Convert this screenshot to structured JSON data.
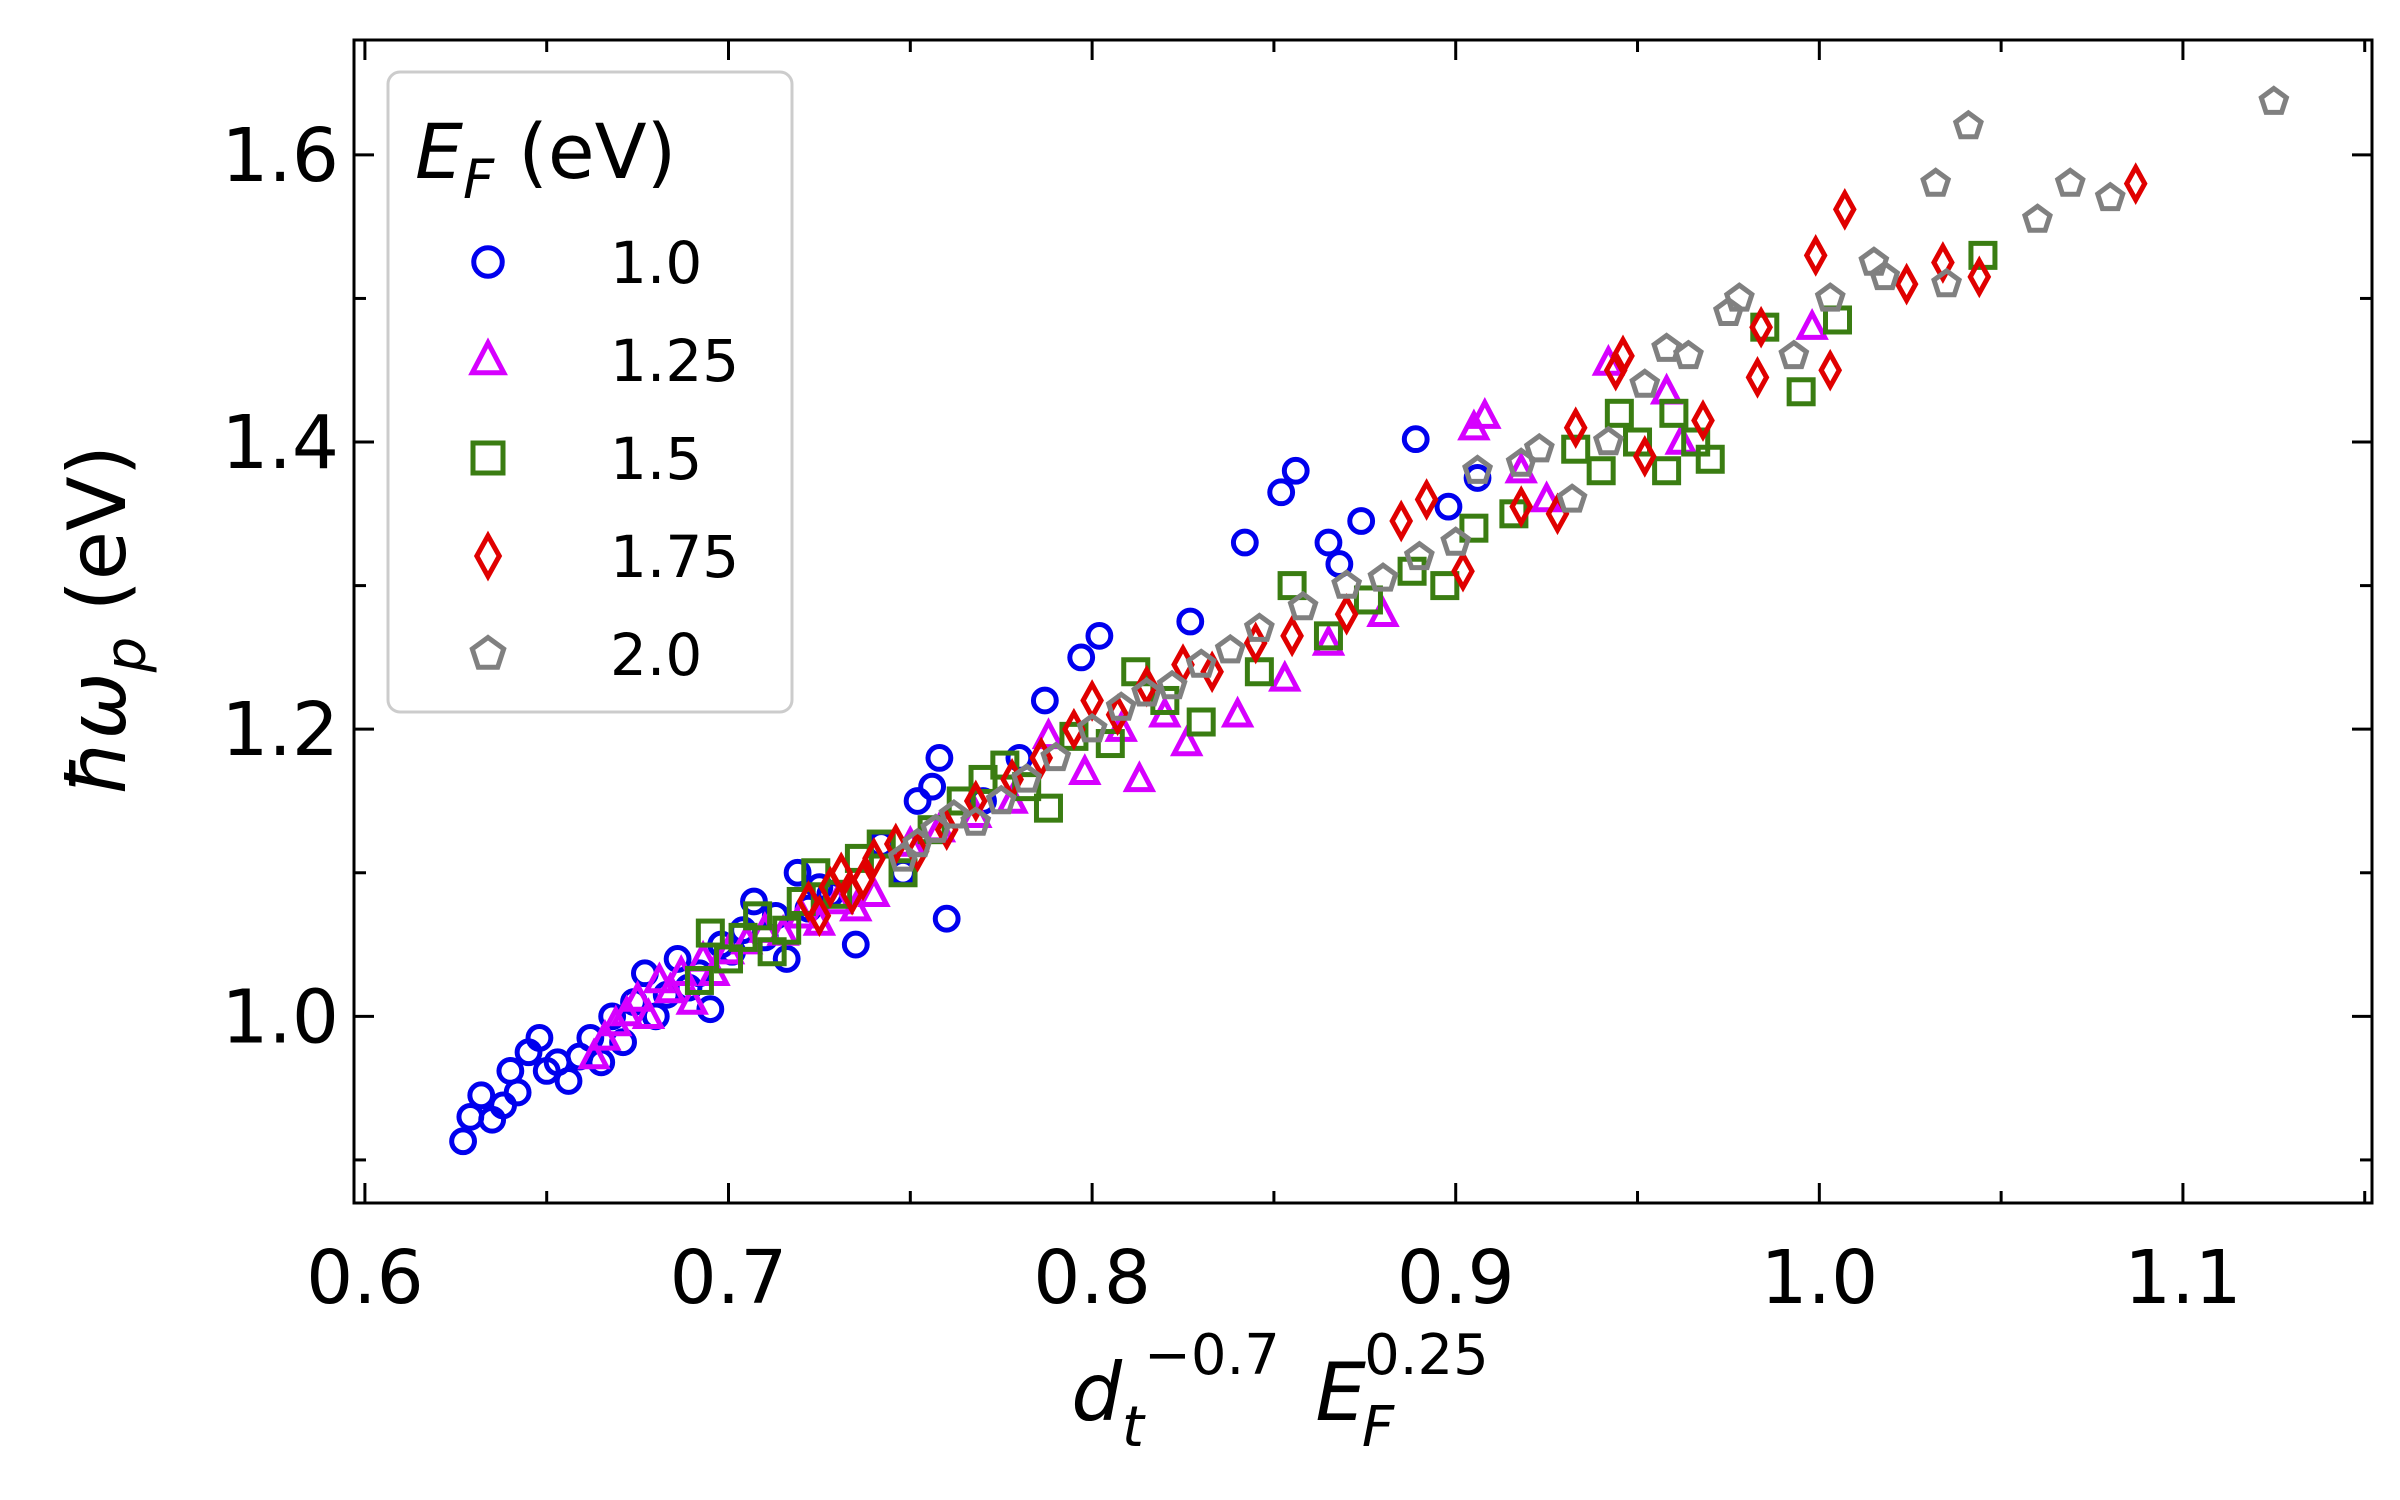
{
  "chart_data": {
    "type": "scatter",
    "xlabel": {
      "base": "d",
      "sub": "t",
      "sup": "−0.7",
      "base2": "E",
      "sub2": "F",
      "sup2": "0.25"
    },
    "ylabel": {
      "symbol": "ħω",
      "sub": "p",
      "unit": "(eV)"
    },
    "xlim": [
      0.597,
      1.152
    ],
    "ylim": [
      0.87,
      1.68
    ],
    "xticks": [
      0.6,
      0.7,
      0.8,
      0.9,
      1.0,
      1.1
    ],
    "xtick_labels": [
      "0.6",
      "0.7",
      "0.8",
      "0.9",
      "1.0",
      "1.1"
    ],
    "yticks": [
      1.0,
      1.2,
      1.4,
      1.6
    ],
    "ytick_labels": [
      "1.0",
      "1.2",
      "1.4",
      "1.6"
    ],
    "yminor": [
      0.9,
      1.1,
      1.3,
      1.5
    ],
    "grid": false,
    "legend": {
      "title": {
        "symbol": "E",
        "sub": "F",
        "unit": "(eV)"
      },
      "placement": "top-left"
    },
    "series": [
      {
        "name": "1.0",
        "marker": "circle",
        "color": "#0000ee",
        "points": [
          [
            0.627,
            0.913
          ],
          [
            0.629,
            0.93
          ],
          [
            0.632,
            0.945
          ],
          [
            0.635,
            0.928
          ],
          [
            0.638,
            0.938
          ],
          [
            0.64,
            0.962
          ],
          [
            0.642,
            0.947
          ],
          [
            0.645,
            0.975
          ],
          [
            0.648,
            0.985
          ],
          [
            0.65,
            0.962
          ],
          [
            0.653,
            0.968
          ],
          [
            0.656,
            0.955
          ],
          [
            0.659,
            0.972
          ],
          [
            0.662,
            0.985
          ],
          [
            0.665,
            0.968
          ],
          [
            0.668,
            1.0
          ],
          [
            0.671,
            0.982
          ],
          [
            0.674,
            1.01
          ],
          [
            0.677,
            1.03
          ],
          [
            0.68,
            1.0
          ],
          [
            0.683,
            1.015
          ],
          [
            0.686,
            1.04
          ],
          [
            0.689,
            1.02
          ],
          [
            0.692,
            1.03
          ],
          [
            0.695,
            1.005
          ],
          [
            0.698,
            1.05
          ],
          [
            0.701,
            1.045
          ],
          [
            0.704,
            1.06
          ],
          [
            0.707,
            1.08
          ],
          [
            0.71,
            1.055
          ],
          [
            0.713,
            1.07
          ],
          [
            0.716,
            1.04
          ],
          [
            0.719,
            1.1
          ],
          [
            0.722,
            1.075
          ],
          [
            0.725,
            1.09
          ],
          [
            0.728,
            1.085
          ],
          [
            0.735,
            1.05
          ],
          [
            0.742,
            1.12
          ],
          [
            0.748,
            1.1
          ],
          [
            0.752,
            1.15
          ],
          [
            0.756,
            1.16
          ],
          [
            0.758,
            1.18
          ],
          [
            0.76,
            1.068
          ],
          [
            0.77,
            1.15
          ],
          [
            0.78,
            1.18
          ],
          [
            0.787,
            1.22
          ],
          [
            0.797,
            1.25
          ],
          [
            0.802,
            1.265
          ],
          [
            0.827,
            1.275
          ],
          [
            0.842,
            1.33
          ],
          [
            0.852,
            1.365
          ],
          [
            0.856,
            1.38
          ],
          [
            0.865,
            1.33
          ],
          [
            0.868,
            1.315
          ],
          [
            0.874,
            1.345
          ],
          [
            0.889,
            1.402
          ],
          [
            0.898,
            1.355
          ],
          [
            0.906,
            1.375
          ]
        ]
      },
      {
        "name": "1.25",
        "marker": "triangle",
        "color": "#d600ff",
        "points": [
          [
            0.663,
            0.972
          ],
          [
            0.666,
            0.985
          ],
          [
            0.669,
            0.995
          ],
          [
            0.672,
            1.002
          ],
          [
            0.675,
            1.012
          ],
          [
            0.678,
            1.0
          ],
          [
            0.681,
            1.025
          ],
          [
            0.684,
            1.018
          ],
          [
            0.687,
            1.03
          ],
          [
            0.69,
            1.01
          ],
          [
            0.693,
            1.04
          ],
          [
            0.696,
            1.03
          ],
          [
            0.7,
            1.045
          ],
          [
            0.705,
            1.052
          ],
          [
            0.71,
            1.06
          ],
          [
            0.715,
            1.058
          ],
          [
            0.72,
            1.07
          ],
          [
            0.725,
            1.065
          ],
          [
            0.73,
            1.08
          ],
          [
            0.735,
            1.075
          ],
          [
            0.74,
            1.085
          ],
          [
            0.75,
            1.12
          ],
          [
            0.758,
            1.13
          ],
          [
            0.768,
            1.14
          ],
          [
            0.778,
            1.15
          ],
          [
            0.788,
            1.195
          ],
          [
            0.798,
            1.17
          ],
          [
            0.808,
            1.2
          ],
          [
            0.813,
            1.165
          ],
          [
            0.82,
            1.21
          ],
          [
            0.826,
            1.19
          ],
          [
            0.84,
            1.21
          ],
          [
            0.853,
            1.235
          ],
          [
            0.865,
            1.26
          ],
          [
            0.88,
            1.28
          ],
          [
            0.905,
            1.41
          ],
          [
            0.908,
            1.418
          ],
          [
            0.918,
            1.38
          ],
          [
            0.925,
            1.36
          ],
          [
            0.942,
            1.455
          ],
          [
            0.958,
            1.435
          ],
          [
            0.962,
            1.4
          ],
          [
            0.998,
            1.48
          ]
        ]
      },
      {
        "name": "1.5",
        "marker": "square",
        "color": "#3a7d12",
        "points": [
          [
            0.692,
            1.025
          ],
          [
            0.695,
            1.058
          ],
          [
            0.7,
            1.04
          ],
          [
            0.704,
            1.055
          ],
          [
            0.708,
            1.07
          ],
          [
            0.712,
            1.045
          ],
          [
            0.716,
            1.06
          ],
          [
            0.72,
            1.08
          ],
          [
            0.724,
            1.1
          ],
          [
            0.73,
            1.085
          ],
          [
            0.736,
            1.11
          ],
          [
            0.742,
            1.12
          ],
          [
            0.748,
            1.1
          ],
          [
            0.756,
            1.13
          ],
          [
            0.764,
            1.15
          ],
          [
            0.77,
            1.165
          ],
          [
            0.776,
            1.175
          ],
          [
            0.782,
            1.16
          ],
          [
            0.788,
            1.145
          ],
          [
            0.795,
            1.195
          ],
          [
            0.805,
            1.19
          ],
          [
            0.812,
            1.24
          ],
          [
            0.82,
            1.22
          ],
          [
            0.83,
            1.205
          ],
          [
            0.846,
            1.24
          ],
          [
            0.855,
            1.3
          ],
          [
            0.865,
            1.265
          ],
          [
            0.876,
            1.29
          ],
          [
            0.888,
            1.31
          ],
          [
            0.897,
            1.3
          ],
          [
            0.905,
            1.34
          ],
          [
            0.916,
            1.35
          ],
          [
            0.933,
            1.395
          ],
          [
            0.94,
            1.38
          ],
          [
            0.945,
            1.42
          ],
          [
            0.95,
            1.4
          ],
          [
            0.958,
            1.38
          ],
          [
            0.96,
            1.42
          ],
          [
            0.966,
            1.4
          ],
          [
            0.97,
            1.388
          ],
          [
            0.985,
            1.48
          ],
          [
            0.995,
            1.435
          ],
          [
            1.005,
            1.485
          ],
          [
            1.045,
            1.53
          ]
        ]
      },
      {
        "name": "1.75",
        "marker": "diamond",
        "color": "#e00000",
        "points": [
          [
            0.722,
            1.08
          ],
          [
            0.725,
            1.07
          ],
          [
            0.728,
            1.09
          ],
          [
            0.731,
            1.1
          ],
          [
            0.734,
            1.085
          ],
          [
            0.737,
            1.095
          ],
          [
            0.74,
            1.11
          ],
          [
            0.746,
            1.12
          ],
          [
            0.752,
            1.115
          ],
          [
            0.76,
            1.13
          ],
          [
            0.768,
            1.15
          ],
          [
            0.778,
            1.165
          ],
          [
            0.786,
            1.18
          ],
          [
            0.795,
            1.2
          ],
          [
            0.8,
            1.22
          ],
          [
            0.807,
            1.21
          ],
          [
            0.815,
            1.23
          ],
          [
            0.825,
            1.245
          ],
          [
            0.833,
            1.24
          ],
          [
            0.845,
            1.26
          ],
          [
            0.855,
            1.265
          ],
          [
            0.87,
            1.28
          ],
          [
            0.885,
            1.345
          ],
          [
            0.892,
            1.36
          ],
          [
            0.902,
            1.31
          ],
          [
            0.918,
            1.355
          ],
          [
            0.928,
            1.35
          ],
          [
            0.933,
            1.41
          ],
          [
            0.944,
            1.45
          ],
          [
            0.946,
            1.46
          ],
          [
            0.952,
            1.39
          ],
          [
            0.968,
            1.415
          ],
          [
            0.983,
            1.445
          ],
          [
            0.984,
            1.48
          ],
          [
            0.999,
            1.53
          ],
          [
            1.003,
            1.45
          ],
          [
            1.007,
            1.562
          ],
          [
            1.024,
            1.51
          ],
          [
            1.034,
            1.525
          ],
          [
            1.044,
            1.515
          ],
          [
            1.087,
            1.58
          ]
        ]
      },
      {
        "name": "2.0",
        "marker": "pentagon",
        "color": "#808080",
        "points": [
          [
            0.748,
            1.11
          ],
          [
            0.752,
            1.12
          ],
          [
            0.757,
            1.13
          ],
          [
            0.762,
            1.14
          ],
          [
            0.768,
            1.135
          ],
          [
            0.775,
            1.15
          ],
          [
            0.782,
            1.165
          ],
          [
            0.79,
            1.18
          ],
          [
            0.8,
            1.2
          ],
          [
            0.808,
            1.215
          ],
          [
            0.815,
            1.225
          ],
          [
            0.822,
            1.23
          ],
          [
            0.83,
            1.245
          ],
          [
            0.838,
            1.255
          ],
          [
            0.846,
            1.27
          ],
          [
            0.858,
            1.285
          ],
          [
            0.87,
            1.3
          ],
          [
            0.88,
            1.305
          ],
          [
            0.89,
            1.32
          ],
          [
            0.9,
            1.33
          ],
          [
            0.906,
            1.38
          ],
          [
            0.918,
            1.385
          ],
          [
            0.923,
            1.395
          ],
          [
            0.932,
            1.36
          ],
          [
            0.942,
            1.4
          ],
          [
            0.952,
            1.44
          ],
          [
            0.958,
            1.465
          ],
          [
            0.964,
            1.46
          ],
          [
            0.975,
            1.49
          ],
          [
            0.978,
            1.5
          ],
          [
            0.993,
            1.46
          ],
          [
            1.003,
            1.5
          ],
          [
            1.015,
            1.525
          ],
          [
            1.018,
            1.515
          ],
          [
            1.032,
            1.58
          ],
          [
            1.035,
            1.51
          ],
          [
            1.041,
            1.62
          ],
          [
            1.06,
            1.555
          ],
          [
            1.069,
            1.58
          ],
          [
            1.08,
            1.57
          ],
          [
            1.125,
            1.637
          ]
        ]
      }
    ]
  }
}
